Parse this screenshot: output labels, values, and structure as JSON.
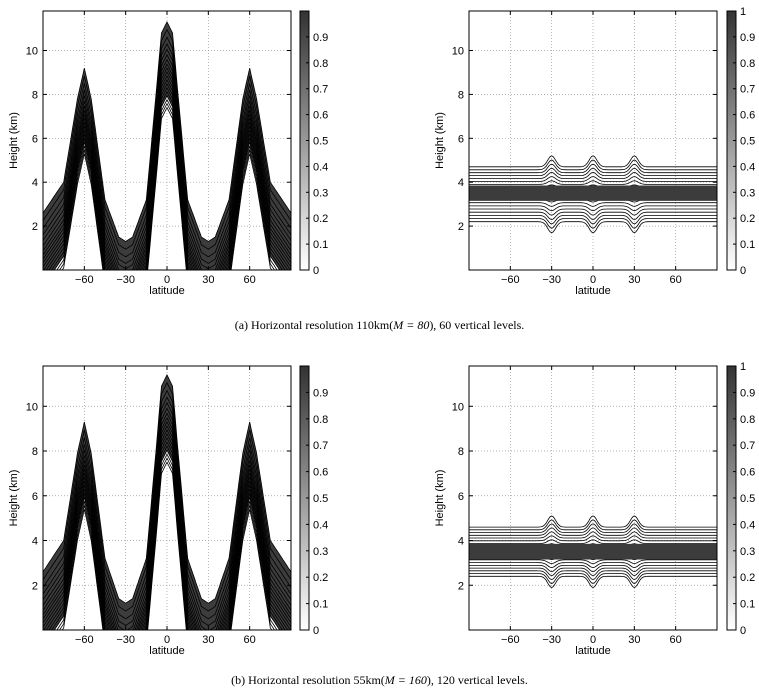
{
  "captions": {
    "a_pre": "(a) Horizontal resolution 110km(",
    "a_math": "M = 80",
    "a_post": "), 60 vertical levels.",
    "b_pre": "(b) Horizontal resolution 55km(",
    "b_math": "M = 160",
    "b_post": "), 120 vertical levels."
  },
  "colors": {
    "dark": "#3c3c3c",
    "line": "#000000",
    "grid": "#9a9a9a",
    "background": "#ffffff"
  },
  "chart_data": [
    {
      "id": "a-left",
      "type": "heatmap",
      "xlabel": "latitude",
      "ylabel": "Height (km)",
      "xlim": [
        -90,
        90
      ],
      "ylim": [
        0,
        11.8
      ],
      "xticks": [
        -60,
        -30,
        0,
        30,
        60
      ],
      "yticks": [
        2,
        4,
        6,
        8,
        10
      ],
      "colorbar": {
        "range": [
          0,
          1
        ],
        "ticks": [
          0,
          0.1,
          0.2,
          0.3,
          0.4,
          0.5,
          0.6,
          0.7,
          0.8,
          0.9
        ],
        "tick_labels": [
          "0",
          "0.1",
          "0.2",
          "0.3",
          "0.4",
          "0.5",
          "0.6",
          "0.7",
          "0.8",
          "0.9"
        ]
      },
      "field": "three tracer plumes: lobes peaking at 9.2 km near -60 and 60, central plume to 11.3 km at 0, trough ~1.3 km near ±30",
      "ridge": {
        "lat": [
          -90,
          -75,
          -65,
          -60,
          -55,
          -45,
          -35,
          -30,
          -25,
          -15,
          -8,
          -4,
          0,
          4,
          8,
          15,
          25,
          30,
          35,
          45,
          55,
          60,
          65,
          75,
          90
        ],
        "height": [
          2.6,
          4.0,
          7.8,
          9.2,
          7.8,
          3.2,
          1.5,
          1.3,
          1.5,
          3.2,
          8.0,
          10.8,
          11.3,
          10.8,
          8.0,
          3.2,
          1.5,
          1.3,
          1.5,
          3.2,
          7.8,
          9.2,
          7.8,
          4.0,
          2.6
        ]
      },
      "grid": true
    },
    {
      "id": "a-right",
      "type": "heatmap",
      "xlabel": "latitude",
      "ylabel": "Height (km)",
      "xlim": [
        -90,
        90
      ],
      "ylim": [
        0,
        11.8
      ],
      "xticks": [
        -60,
        -30,
        0,
        30,
        60
      ],
      "yticks": [
        2,
        4,
        6,
        8,
        10
      ],
      "colorbar": {
        "range": [
          0,
          1
        ],
        "ticks": [
          0,
          0.1,
          0.2,
          0.3,
          0.4,
          0.5,
          0.6,
          0.7,
          0.8,
          0.9,
          1
        ],
        "tick_labels": [
          "0",
          "0.1",
          "0.2",
          "0.3",
          "0.4",
          "0.5",
          "0.6",
          "0.7",
          "0.8",
          "0.9",
          "1"
        ]
      },
      "field": "horizontal layer between ~2.2 km and ~4.7 km, maximum ~3.5 km, perturbations near -30, 0, 30",
      "layer": {
        "center": 3.5,
        "bottom": 2.2,
        "top": 4.7,
        "bumps_lat": [
          -30,
          0,
          30
        ]
      },
      "grid": true
    },
    {
      "id": "b-left",
      "type": "heatmap",
      "xlabel": "latitude",
      "ylabel": "Height (km)",
      "xlim": [
        -90,
        90
      ],
      "ylim": [
        0,
        11.8
      ],
      "xticks": [
        -60,
        -30,
        0,
        30,
        60
      ],
      "yticks": [
        2,
        4,
        6,
        8,
        10
      ],
      "colorbar": {
        "range": [
          0,
          1
        ],
        "ticks": [
          0,
          0.1,
          0.2,
          0.3,
          0.4,
          0.5,
          0.6,
          0.7,
          0.8,
          0.9
        ],
        "tick_labels": [
          "0",
          "0.1",
          "0.2",
          "0.3",
          "0.4",
          "0.5",
          "0.6",
          "0.7",
          "0.8",
          "0.9"
        ]
      },
      "field": "three tracer plumes: lobes peaking at 9.3 km near -60 and 60, central plume to 11.4 km at 0, trough ~1.2 km near ±30",
      "ridge": {
        "lat": [
          -90,
          -75,
          -65,
          -60,
          -55,
          -45,
          -35,
          -30,
          -25,
          -15,
          -8,
          -4,
          0,
          4,
          8,
          15,
          25,
          30,
          35,
          45,
          55,
          60,
          65,
          75,
          90
        ],
        "height": [
          2.6,
          4.0,
          7.9,
          9.3,
          7.9,
          3.2,
          1.4,
          1.2,
          1.4,
          3.2,
          8.0,
          10.9,
          11.4,
          10.9,
          8.0,
          3.2,
          1.4,
          1.2,
          1.4,
          3.2,
          7.9,
          9.3,
          7.9,
          4.0,
          2.6
        ]
      },
      "grid": true
    },
    {
      "id": "b-right",
      "type": "heatmap",
      "xlabel": "latitude",
      "ylabel": "Height (km)",
      "xlim": [
        -90,
        90
      ],
      "ylim": [
        0,
        11.8
      ],
      "xticks": [
        -60,
        -30,
        0,
        30,
        60
      ],
      "yticks": [
        2,
        4,
        6,
        8,
        10
      ],
      "colorbar": {
        "range": [
          0,
          1
        ],
        "ticks": [
          0,
          0.1,
          0.2,
          0.3,
          0.4,
          0.5,
          0.6,
          0.7,
          0.8,
          0.9,
          1
        ],
        "tick_labels": [
          "0",
          "0.1",
          "0.2",
          "0.3",
          "0.4",
          "0.5",
          "0.6",
          "0.7",
          "0.8",
          "0.9",
          "1"
        ]
      },
      "field": "horizontal layer between ~2.4 km and ~4.6 km, maximum ~3.5 km, weak perturbations near -30, 0, 30",
      "layer": {
        "center": 3.5,
        "bottom": 2.4,
        "top": 4.6,
        "bumps_lat": [
          -30,
          0,
          30
        ]
      },
      "grid": true
    }
  ]
}
